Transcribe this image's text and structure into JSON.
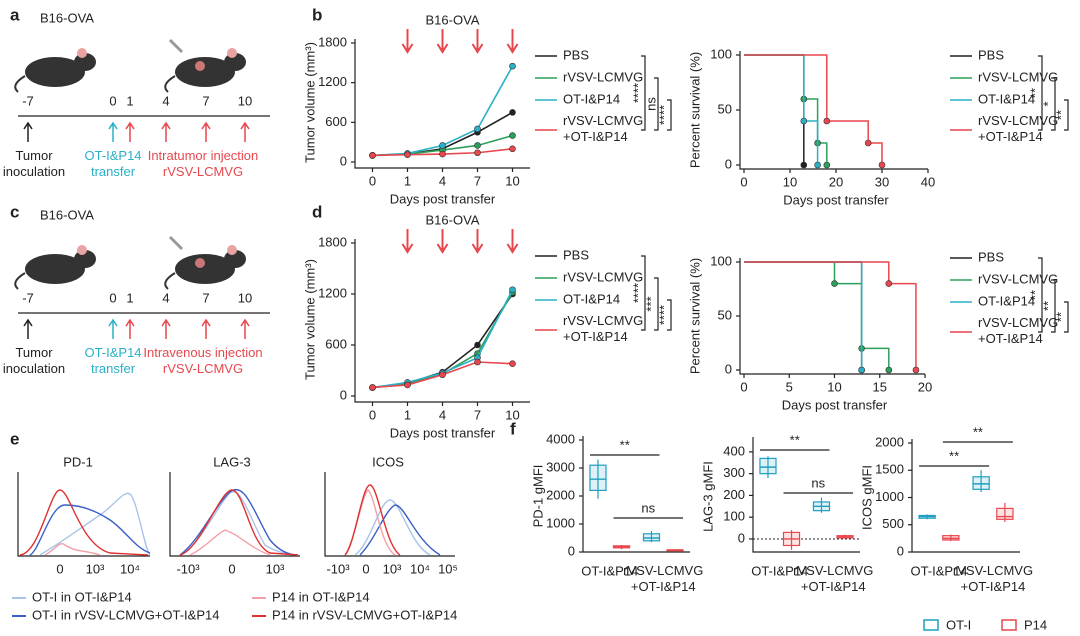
{
  "panel_labels": [
    "a",
    "b",
    "c",
    "d",
    "e",
    "f"
  ],
  "timelines": [
    {
      "title": "B16-OVA",
      "ticks": [
        "-7",
        "0",
        "1",
        "4",
        "7",
        "10"
      ],
      "notes": [
        "Tumor\ninoculation",
        "OT-I&P14\ntransfer",
        "Intratumor injection\nrVSV-LCMVG"
      ]
    },
    {
      "title": "B16-OVA",
      "ticks": [
        "-7",
        "0",
        "1",
        "4",
        "7",
        "10"
      ],
      "notes": [
        "Tumor\ninoculation",
        "OT-I&P14\ntransfer",
        "Intravenous injection\nrVSV-LCMVG"
      ]
    }
  ],
  "histograms": {
    "titles": [
      "PD-1",
      "LAG-3",
      "ICOS"
    ],
    "axes": [
      [
        "0",
        "10³",
        "10⁴"
      ],
      [
        "-10³",
        "0",
        "10³"
      ],
      [
        "-10³",
        "0",
        "10³",
        "10⁴",
        "10⁵"
      ]
    ],
    "legend": [
      "OT-I in OT-I&P14",
      "OT-I in rVSV-LCMVG+OT-I&P14",
      "P14 in OT-I&P14",
      "P14 in rVSV-LCMVG+OT-I&P14"
    ]
  },
  "chart_data": [
    {
      "type": "line",
      "title": "B16-OVA",
      "xlabel": "Days post transfer",
      "ylabel": "Tumor volume (mm³)",
      "categories": [
        "0",
        "1",
        "4",
        "7",
        "10"
      ],
      "ylim": [
        0,
        1800
      ],
      "yticks": [
        0,
        600,
        1200,
        1800
      ],
      "series": [
        {
          "name": "PBS",
          "color": "#222222",
          "values": [
            100,
            120,
            200,
            450,
            750
          ]
        },
        {
          "name": "rVSV-LCMVG",
          "color": "#2ca05a",
          "values": [
            100,
            120,
            180,
            250,
            400
          ]
        },
        {
          "name": "OT-I&P14",
          "color": "#2ab0c8",
          "values": [
            100,
            130,
            250,
            500,
            1450
          ]
        },
        {
          "name": "rVSV-LCMVG\n+OT-I&P14",
          "color": "#e8474e",
          "values": [
            100,
            110,
            120,
            140,
            200
          ]
        }
      ],
      "annotations": [
        "****",
        "ns",
        "****"
      ]
    },
    {
      "type": "step",
      "xlabel": "Days post transfer",
      "ylabel": "Percent survival (%)",
      "xlim": [
        0,
        40
      ],
      "xticks": [
        0,
        10,
        20,
        30,
        40
      ],
      "ylim": [
        0,
        100
      ],
      "yticks": [
        0,
        50,
        100
      ],
      "series": [
        {
          "name": "PBS",
          "color": "#222222",
          "x": [
            0,
            13
          ],
          "values": [
            100,
            0
          ]
        },
        {
          "name": "rVSV-LCMVG",
          "color": "#2ca05a",
          "x": [
            0,
            13,
            16,
            18
          ],
          "values": [
            100,
            60,
            20,
            0
          ]
        },
        {
          "name": "OT-I&P14",
          "color": "#2ab0c8",
          "x": [
            0,
            13,
            16
          ],
          "values": [
            100,
            40,
            0
          ]
        },
        {
          "name": "rVSV-LCMVG\n+OT-I&P14",
          "color": "#e8474e",
          "x": [
            0,
            18,
            27,
            30
          ],
          "values": [
            100,
            40,
            20,
            0
          ]
        }
      ],
      "annotations": [
        "**",
        "*",
        "**"
      ]
    },
    {
      "type": "line",
      "title": "B16-OVA",
      "xlabel": "Days post transfer",
      "ylabel": "Tumor volume (mm³)",
      "categories": [
        "0",
        "1",
        "4",
        "7",
        "10"
      ],
      "ylim": [
        0,
        1800
      ],
      "yticks": [
        0,
        600,
        1200,
        1800
      ],
      "series": [
        {
          "name": "PBS",
          "color": "#222222",
          "values": [
            100,
            150,
            280,
            600,
            1200
          ]
        },
        {
          "name": "rVSV-LCMVG",
          "color": "#2ca05a",
          "values": [
            100,
            140,
            260,
            500,
            1220
          ]
        },
        {
          "name": "OT-I&P14",
          "color": "#2ab0c8",
          "values": [
            100,
            160,
            270,
            450,
            1250
          ]
        },
        {
          "name": "rVSV-LCMVG\n+OT-I&P14",
          "color": "#e8474e",
          "values": [
            100,
            130,
            250,
            400,
            380
          ]
        }
      ],
      "annotations": [
        "****",
        "***",
        "****"
      ]
    },
    {
      "type": "step",
      "xlabel": "Days post transfer",
      "ylabel": "Percent survival (%)",
      "xlim": [
        0,
        20
      ],
      "xticks": [
        0,
        5,
        10,
        15,
        20
      ],
      "ylim": [
        0,
        100
      ],
      "yticks": [
        0,
        50,
        100
      ],
      "series": [
        {
          "name": "PBS",
          "color": "#222222",
          "x": [
            0,
            13
          ],
          "values": [
            100,
            0
          ]
        },
        {
          "name": "rVSV-LCMVG",
          "color": "#2ca05a",
          "x": [
            0,
            10,
            13,
            16
          ],
          "values": [
            100,
            80,
            20,
            0
          ]
        },
        {
          "name": "OT-I&P14",
          "color": "#2ab0c8",
          "x": [
            0,
            13
          ],
          "values": [
            100,
            0
          ]
        },
        {
          "name": "rVSV-LCMVG\n+OT-I&P14",
          "color": "#e8474e",
          "x": [
            0,
            16,
            19
          ],
          "values": [
            100,
            80,
            0
          ]
        }
      ],
      "annotations": [
        "**",
        "**",
        "**"
      ]
    },
    {
      "type": "box",
      "ylabel": "PD-1 gMFI",
      "categories": [
        "OT-I&P14",
        "rVSV-LCMVG\n+OT-I&P14"
      ],
      "ylim": [
        0,
        4000
      ],
      "yticks": [
        0,
        1000,
        2000,
        3000,
        4000
      ],
      "series": [
        {
          "name": "OT-I",
          "color": "#1e9fc0",
          "min": [
            1900,
            350
          ],
          "q1": [
            2200,
            400
          ],
          "median": [
            2600,
            500
          ],
          "q3": [
            3100,
            650
          ],
          "max": [
            3300,
            750
          ]
        },
        {
          "name": "P14",
          "color": "#e8474e",
          "min": [
            100,
            30
          ],
          "q1": [
            150,
            50
          ],
          "median": [
            180,
            60
          ],
          "q3": [
            220,
            80
          ],
          "max": [
            250,
            100
          ]
        }
      ],
      "annotations": [
        "**",
        "ns"
      ]
    },
    {
      "type": "box",
      "ylabel": "LAG-3 gMFI",
      "categories": [
        "OT-I&P14",
        "rVSV-LCMVG\n+OT-I&P14"
      ],
      "ylim": [
        -60,
        450
      ],
      "yticks": [
        0,
        100,
        200,
        300,
        400
      ],
      "series": [
        {
          "name": "OT-I",
          "color": "#1e9fc0",
          "min": [
            280,
            120
          ],
          "q1": [
            300,
            130
          ],
          "median": [
            330,
            150
          ],
          "q3": [
            370,
            170
          ],
          "max": [
            380,
            190
          ]
        },
        {
          "name": "P14",
          "color": "#e8474e",
          "min": [
            -50,
            0
          ],
          "q1": [
            -30,
            5
          ],
          "median": [
            0,
            10
          ],
          "q3": [
            30,
            15
          ],
          "max": [
            40,
            20
          ]
        }
      ],
      "annotations": [
        "**",
        "ns"
      ]
    },
    {
      "type": "box",
      "ylabel": "ICOS gMFI",
      "categories": [
        "OT-I&P14",
        "rVSV-LCMVG\n+OT-I&P14"
      ],
      "ylim": [
        0,
        2000
      ],
      "yticks": [
        0,
        500,
        1000,
        1500,
        2000
      ],
      "legend": true,
      "series": [
        {
          "name": "OT-I",
          "color": "#1e9fc0",
          "min": [
            600,
            1100
          ],
          "q1": [
            620,
            1150
          ],
          "median": [
            650,
            1250
          ],
          "q3": [
            670,
            1380
          ],
          "max": [
            690,
            1500
          ]
        },
        {
          "name": "P14",
          "color": "#e8474e",
          "min": [
            200,
            550
          ],
          "q1": [
            220,
            600
          ],
          "median": [
            250,
            650
          ],
          "q3": [
            300,
            800
          ],
          "max": [
            320,
            900
          ]
        }
      ],
      "annotations": [
        "**",
        "**"
      ]
    }
  ]
}
